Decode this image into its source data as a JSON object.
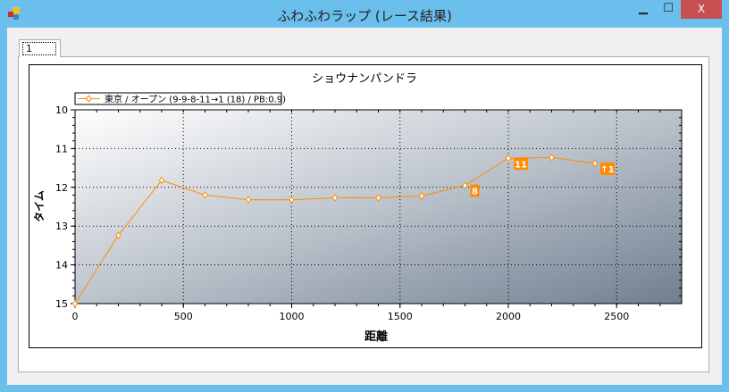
{
  "window": {
    "title": "ふわふわラップ (レース結果)",
    "minimize": "▁",
    "maximize": "☐",
    "close": "X"
  },
  "tabs": [
    {
      "label": "1",
      "selected": true
    }
  ],
  "chart_data": {
    "type": "line",
    "title": "ショウナンパンドラ",
    "xlabel": "距離",
    "ylabel": "タイム",
    "xlim": [
      0,
      2800
    ],
    "ylim": [
      10,
      15
    ],
    "y_reversed": true,
    "grid": true,
    "legend_position": "top-left",
    "xticks": [
      "0",
      "500",
      "1000",
      "1500",
      "2000",
      "2500"
    ],
    "yticks": [
      "10",
      "11",
      "12",
      "13",
      "14",
      "15"
    ],
    "series": [
      {
        "name": "東京 / オープン (9-9-8-11→1 (18) / PB:0.9)",
        "color": "#ff8c00",
        "x": [
          0,
          200,
          400,
          600,
          800,
          1000,
          1200,
          1400,
          1600,
          1800,
          2000,
          2200,
          2400
        ],
        "y": [
          15.0,
          13.24,
          11.82,
          12.2,
          12.32,
          12.32,
          12.27,
          12.27,
          12.22,
          11.95,
          11.25,
          11.23,
          11.38
        ]
      }
    ],
    "annotations": [
      {
        "x": 1800,
        "y": 11.95,
        "text": "8"
      },
      {
        "x": 2000,
        "y": 11.25,
        "text": "11"
      },
      {
        "x": 2400,
        "y": 11.38,
        "text": "↑1"
      }
    ]
  }
}
